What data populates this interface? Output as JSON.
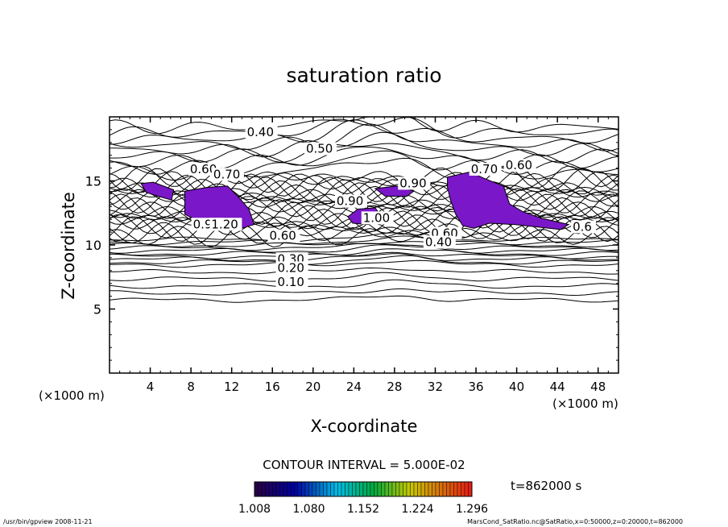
{
  "chart_data": {
    "type": "contour",
    "title": "saturation ratio",
    "xlabel": "X-coordinate",
    "ylabel": "Z-coordinate",
    "x_unit": "(×1000 m)",
    "y_unit": "(×1000 m)",
    "xlim": [
      0,
      50
    ],
    "ylim": [
      0,
      20
    ],
    "x_ticks": [
      "4",
      "8",
      "12",
      "16",
      "20",
      "24",
      "28",
      "32",
      "36",
      "40",
      "44",
      "48"
    ],
    "y_ticks": [
      "5",
      "10",
      "15"
    ],
    "contour_interval_text": "CONTOUR INTERVAL = 5.000E-02",
    "contour_labels": [
      {
        "text": "0.40",
        "x": 13.5,
        "y": 18.5
      },
      {
        "text": "0.50",
        "x": 19.3,
        "y": 17.2
      },
      {
        "text": "0.60",
        "x": 7.9,
        "y": 15.6
      },
      {
        "text": "0.70",
        "x": 10.2,
        "y": 15.2
      },
      {
        "text": "0.70",
        "x": 35.5,
        "y": 15.6
      },
      {
        "text": "0.60",
        "x": 38.9,
        "y": 15.9
      },
      {
        "text": "0.90",
        "x": 22.3,
        "y": 13.1
      },
      {
        "text": "0.90",
        "x": 28.5,
        "y": 14.5
      },
      {
        "text": "0.90",
        "x": 8.2,
        "y": 11.3
      },
      {
        "text": "1.20",
        "x": 10.0,
        "y": 11.3
      },
      {
        "text": "1.00",
        "x": 24.9,
        "y": 11.8
      },
      {
        "text": "0.60",
        "x": 15.7,
        "y": 10.4
      },
      {
        "text": "0.60",
        "x": 31.6,
        "y": 10.6
      },
      {
        "text": "0.40",
        "x": 31.0,
        "y": 9.9
      },
      {
        "text": "0.30",
        "x": 16.5,
        "y": 8.6
      },
      {
        "text": "0.20",
        "x": 16.5,
        "y": 7.9
      },
      {
        "text": "0.10",
        "x": 16.5,
        "y": 6.8
      },
      {
        "text": "0.6",
        "x": 45.5,
        "y": 11.1
      }
    ],
    "shaded_regions": [
      {
        "name": "supersaturated-region-1",
        "level": 1.008,
        "polygon": [
          [
            3.1,
            14.8
          ],
          [
            4.3,
            14.9
          ],
          [
            6.3,
            14.3
          ],
          [
            6.1,
            13.5
          ],
          [
            4.8,
            13.8
          ],
          [
            3.6,
            14.1
          ]
        ]
      },
      {
        "name": "supersaturated-region-2",
        "level": 1.008,
        "polygon": [
          [
            7.4,
            14.2
          ],
          [
            9.6,
            14.5
          ],
          [
            11.6,
            14.6
          ],
          [
            12.6,
            13.8
          ],
          [
            13.7,
            12.8
          ],
          [
            14.2,
            11.6
          ],
          [
            13.0,
            11.3
          ],
          [
            11.5,
            11.2
          ],
          [
            10.0,
            11.4
          ],
          [
            8.6,
            11.9
          ],
          [
            7.4,
            12.4
          ]
        ]
      },
      {
        "name": "supersaturated-region-3",
        "level": 1.008,
        "polygon": [
          [
            23.4,
            12.2
          ],
          [
            24.4,
            12.8
          ],
          [
            26.1,
            12.9
          ],
          [
            26.7,
            12.2
          ],
          [
            25.4,
            11.6
          ],
          [
            23.9,
            11.7
          ]
        ]
      },
      {
        "name": "supersaturated-region-4",
        "level": 1.008,
        "polygon": [
          [
            26.1,
            14.4
          ],
          [
            28.2,
            14.6
          ],
          [
            29.9,
            14.2
          ],
          [
            29.2,
            13.8
          ],
          [
            27.1,
            13.8
          ]
        ]
      },
      {
        "name": "supersaturated-region-5",
        "level": 1.008,
        "polygon": [
          [
            33.2,
            15.3
          ],
          [
            35.4,
            15.7
          ],
          [
            36.8,
            15.2
          ],
          [
            38.7,
            14.6
          ],
          [
            39.3,
            13.2
          ],
          [
            40.6,
            12.6
          ],
          [
            42.4,
            12.1
          ],
          [
            45.1,
            11.6
          ],
          [
            44.3,
            11.2
          ],
          [
            42.1,
            11.4
          ],
          [
            39.8,
            11.6
          ],
          [
            37.3,
            11.7
          ],
          [
            35.8,
            11.3
          ],
          [
            34.7,
            11.5
          ],
          [
            34.0,
            12.4
          ],
          [
            33.5,
            13.5
          ],
          [
            33.2,
            14.5
          ]
        ]
      }
    ],
    "colorbar": {
      "ticks": [
        "1.008",
        "1.080",
        "1.152",
        "1.224",
        "1.296"
      ],
      "range": [
        1.008,
        1.296
      ]
    },
    "time_label": "t=862000 s",
    "footer_left": "/usr/bin/gpview  2008-11-21",
    "footer_right": "MarsCond_SatRatio.nc@SatRatio,x=0:50000,z=0:20000,t=862000"
  }
}
